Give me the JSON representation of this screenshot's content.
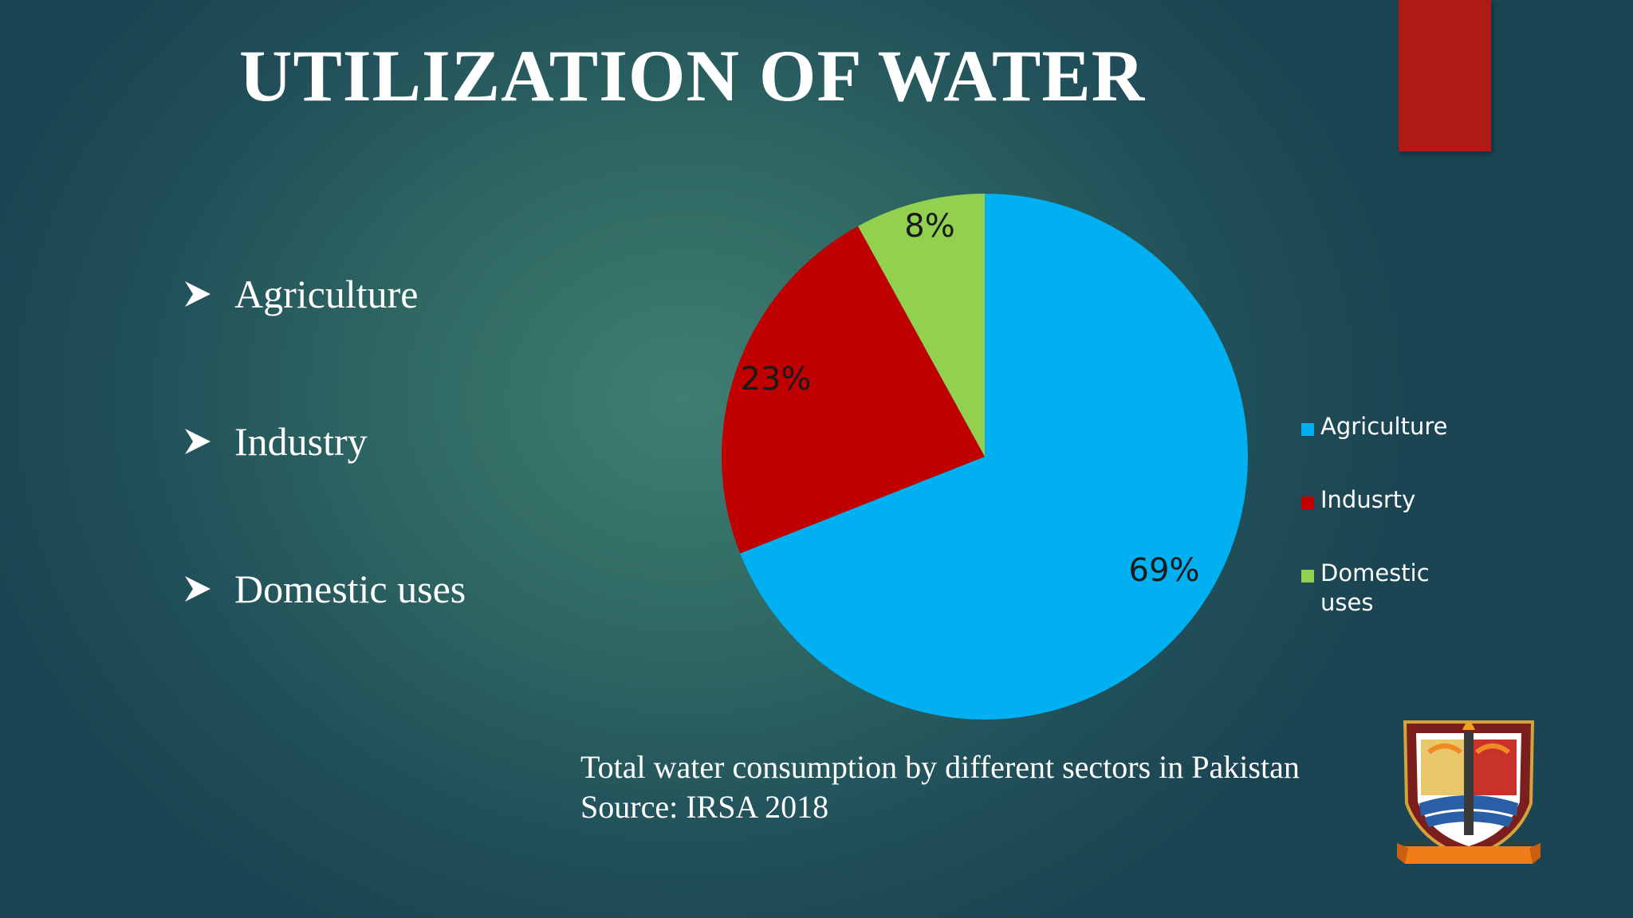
{
  "slide": {
    "title": "UTILIZATION OF WATER",
    "bullets": [
      "Agriculture",
      "Industry",
      "Domestic uses"
    ],
    "caption_line1": "Total water consumption by different sectors in Pakistan",
    "caption_line2": "Source: IRSA 2018",
    "colors": {
      "accent_bar": "#b01a16",
      "text": "#ffffff"
    },
    "icons": {
      "bullet": "arrowhead-bullet-icon",
      "logo": "university-crest-logo"
    }
  },
  "chart_data": {
    "type": "pie",
    "title": "",
    "categories": [
      "Agriculture",
      "Indusrty",
      "Domestic uses"
    ],
    "values": [
      69,
      23,
      8
    ],
    "data_labels": [
      "69%",
      "23%",
      "8%"
    ],
    "colors": [
      "#00b0f0",
      "#c00000",
      "#92d050"
    ],
    "legend": {
      "position": "right",
      "entries": [
        [
          "Agriculture"
        ],
        [
          "Indusrty"
        ],
        [
          "Domestic",
          "uses"
        ]
      ]
    },
    "start_angle_deg": 0,
    "direction": "clockwise"
  }
}
